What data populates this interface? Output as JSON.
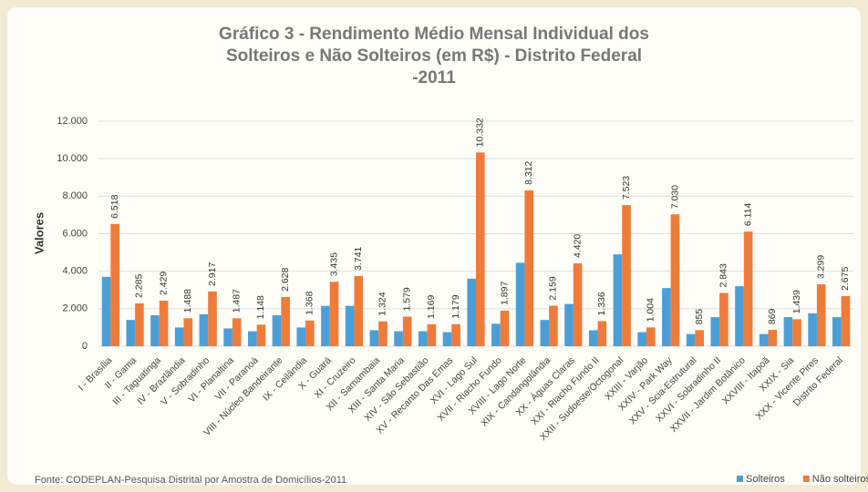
{
  "chart_data": {
    "type": "bar",
    "title": "Gráfico 3 - Rendimento Médio Mensal Individual dos Solteiros e Não Solteiros (em R$) - Distrito Federal -2011",
    "y_label": "Valores",
    "source": "Fonte: CODEPLAN-Pesquisa Distrital por Amostra de Domicílios-2011",
    "categories": [
      "I - Brasília",
      "II - Gama",
      "III - Taguatinga",
      "IV - Brazlândia",
      "V - Sobradinho",
      "VI - Planaltina",
      "VII - Paranoá",
      "VIII - Núcleo Bandeirante",
      "IX - Ceilândia",
      "X - Guará",
      "XI - Cruzeiro",
      "XII - Samambaia",
      "XIII - Santa Maria",
      "XIV - São Sebastião",
      "XV - Recanto Das Emas",
      "XVI - Lago Sul",
      "XVII - Riacho Fundo",
      "XVIII - Lago Norte",
      "XIX - Candangolândia",
      "XX - Águas Claras",
      "XXI - Riacho Fundo II",
      "XXII - Sudoeste/Octogonal",
      "XXIII - Varjão",
      "XXIV - Park Way",
      "XXV - Scia-Estrutural",
      "XXVI - Sobradinho II",
      "XXVII - Jardim Botânico",
      "XXVIII - Itapoã",
      "XXIX - Sia",
      "XXX - Vicente Pires",
      "Distrito Federal"
    ],
    "series": [
      {
        "name": "Solteiros",
        "color": "#4a9fd8",
        "values": [
          3700,
          1400,
          1650,
          1000,
          1700,
          950,
          800,
          1650,
          1000,
          2150,
          2150,
          850,
          800,
          800,
          750,
          3600,
          1200,
          4450,
          1400,
          2250,
          850,
          4900,
          750,
          3100,
          650,
          1550,
          3200,
          650,
          1550,
          1750,
          1550
        ]
      },
      {
        "name": "Não solteiros",
        "color": "#ef7b3a",
        "values": [
          6518,
          2285,
          2429,
          1488,
          2917,
          1487,
          1148,
          2628,
          1368,
          3435,
          3741,
          1324,
          1579,
          1169,
          1179,
          10332,
          1897,
          8312,
          2159,
          4420,
          1336,
          7523,
          1004,
          7030,
          855,
          2843,
          6114,
          869,
          1439,
          3299,
          2675
        ],
        "value_labels": [
          "6.518",
          "2.285",
          "2.429",
          "1.488",
          "2.917",
          "1.487",
          "1.148",
          "2.628",
          "1.368",
          "3.435",
          "3.741",
          "1.324",
          "1.579",
          "1.169",
          "1.179",
          "10.332",
          "1.897",
          "8.312",
          "2.159",
          "4.420",
          "1.336",
          "7.523",
          "1.004",
          "7.030",
          "855",
          "2.843",
          "6.114",
          "869",
          "1.439",
          "3.299",
          "2.675"
        ]
      }
    ],
    "ylim": [
      0,
      12000
    ],
    "yticks": [
      0,
      {
        "value": 2000,
        "label": "2.000"
      },
      {
        "value": 4000,
        "label": "4.000"
      },
      {
        "value": 6000,
        "label": "6.000"
      },
      {
        "value": 8000,
        "label": "8.000"
      },
      {
        "value": 10000,
        "label": "10.000"
      },
      {
        "value": 12000,
        "label": "12.000"
      }
    ],
    "grid": true
  }
}
